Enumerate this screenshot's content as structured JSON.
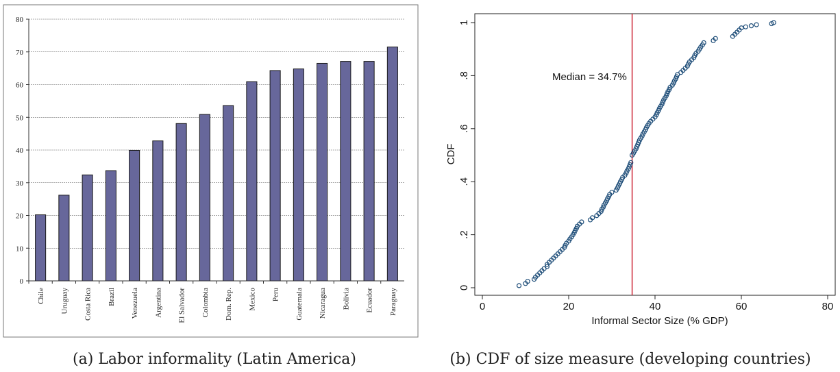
{
  "captions": {
    "a": "(a) Labor informality (Latin America)",
    "b": "(b) CDF of size measure (developing countries)"
  },
  "colors": {
    "bar_fill": "#67679b",
    "bar_stroke": "#1a1a1a",
    "median_line": "#cc2233",
    "marker": "#1f4e79"
  },
  "chart_data": [
    {
      "type": "bar",
      "title": "",
      "xlabel": "",
      "ylabel": "",
      "ylim": [
        0,
        80
      ],
      "yticks": [
        0,
        10,
        20,
        30,
        40,
        50,
        60,
        70,
        80
      ],
      "grid": true,
      "categories": [
        "Chile",
        "Uruguay",
        "Costa Rica",
        "Brazil",
        "Venezuela",
        "Argentina",
        "El Salvador",
        "Colombia",
        "Dom. Rep.",
        "Mexico",
        "Peru",
        "Guatemala",
        "Nicaragua",
        "Bolivia",
        "Ecuador",
        "Paraguay"
      ],
      "values": [
        20.2,
        26.2,
        32.4,
        33.7,
        39.9,
        42.8,
        48.1,
        50.9,
        53.6,
        60.9,
        64.3,
        64.8,
        66.5,
        67.1,
        67.1,
        71.5
      ]
    },
    {
      "type": "scatter",
      "title": "",
      "xlabel": "Informal Sector Size (% GDP)",
      "ylabel": "CDF",
      "xlim": [
        0,
        80
      ],
      "ylim": [
        0,
        1
      ],
      "xticks": [
        "0",
        "20",
        "40",
        "60",
        "80"
      ],
      "yticks": [
        "0",
        ".2",
        ".4",
        ".6",
        ".8",
        "1"
      ],
      "grid": false,
      "median_value": 34.7,
      "annotation": "Median = 34.7%",
      "series": [
        {
          "x": [
            8.5,
            10,
            10.5,
            12,
            12.3,
            12.8,
            13.3,
            13.8,
            14.3,
            15,
            15,
            15.5,
            16,
            16.5,
            17,
            17.5,
            18,
            18.5,
            19,
            19.2,
            19.5,
            20,
            20.3,
            20.7,
            21,
            21.3,
            21.5,
            21.8,
            22,
            22.5,
            23,
            25,
            25.5,
            26.5,
            27,
            27.5,
            27.7,
            28,
            28.2,
            28.5,
            28.8,
            29,
            29.3,
            29.5,
            30,
            31,
            31.3,
            31.5,
            31.8,
            32,
            32.3,
            32.5,
            33,
            33.3,
            33.5,
            33.8,
            34,
            34.2,
            34.4,
            34.7,
            35,
            35.3,
            35.6,
            35.8,
            36,
            36.2,
            36.4,
            36.7,
            37,
            37.2,
            37.5,
            37.8,
            38,
            38.3,
            38.6,
            39,
            39.5,
            40,
            40.3,
            40.5,
            40.8,
            41,
            41.3,
            41.6,
            41.8,
            42,
            42.3,
            42.6,
            42.8,
            43,
            43.3,
            43.5,
            44,
            44.3,
            44.5,
            44.8,
            45,
            45.2,
            46,
            46.5,
            47,
            47.5,
            47.7,
            48,
            48.5,
            49,
            49.2,
            49.5,
            50,
            50.3,
            50.6,
            51,
            51.3,
            53.5,
            54,
            58,
            58.5,
            59,
            59.5,
            60,
            61,
            62.3,
            63.5,
            67,
            67.5
          ],
          "y": [
            0.008,
            0.016,
            0.024,
            0.032,
            0.04,
            0.048,
            0.056,
            0.064,
            0.072,
            0.08,
            0.088,
            0.096,
            0.104,
            0.112,
            0.12,
            0.128,
            0.136,
            0.144,
            0.152,
            0.16,
            0.168,
            0.176,
            0.184,
            0.192,
            0.2,
            0.208,
            0.216,
            0.224,
            0.232,
            0.24,
            0.248,
            0.256,
            0.264,
            0.272,
            0.28,
            0.288,
            0.296,
            0.304,
            0.312,
            0.32,
            0.328,
            0.336,
            0.344,
            0.352,
            0.36,
            0.368,
            0.376,
            0.384,
            0.392,
            0.4,
            0.408,
            0.416,
            0.424,
            0.432,
            0.44,
            0.448,
            0.456,
            0.464,
            0.472,
            0.5,
            0.508,
            0.516,
            0.524,
            0.532,
            0.54,
            0.548,
            0.556,
            0.564,
            0.572,
            0.58,
            0.588,
            0.596,
            0.604,
            0.612,
            0.62,
            0.628,
            0.636,
            0.644,
            0.652,
            0.66,
            0.668,
            0.676,
            0.684,
            0.692,
            0.7,
            0.708,
            0.716,
            0.724,
            0.732,
            0.74,
            0.748,
            0.756,
            0.764,
            0.772,
            0.78,
            0.788,
            0.796,
            0.804,
            0.812,
            0.82,
            0.828,
            0.836,
            0.844,
            0.852,
            0.86,
            0.868,
            0.876,
            0.884,
            0.892,
            0.9,
            0.908,
            0.916,
            0.924,
            0.932,
            0.94,
            0.948,
            0.956,
            0.964,
            0.972,
            0.98,
            0.984,
            0.988,
            0.992,
            0.996,
            1.0
          ]
        }
      ]
    }
  ]
}
